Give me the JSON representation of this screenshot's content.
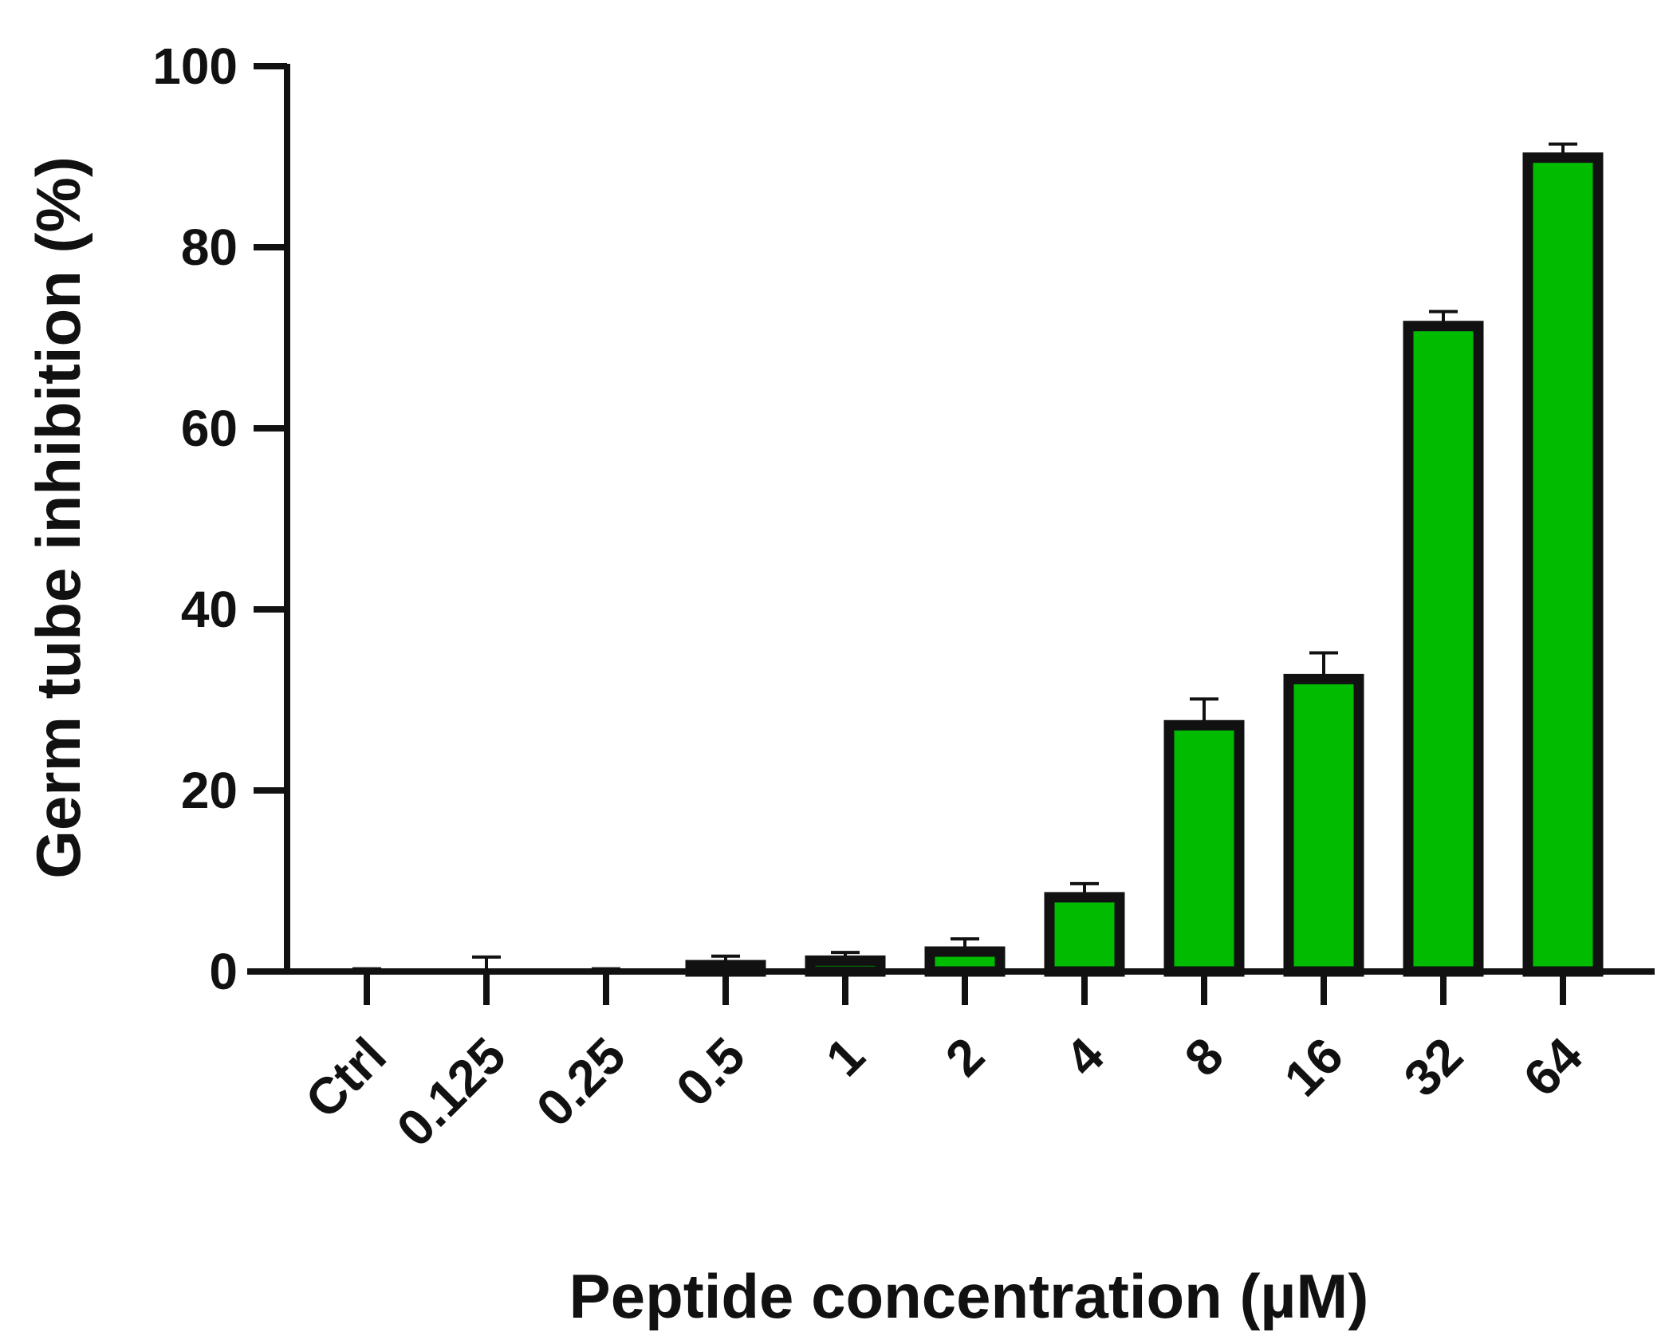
{
  "chart_data": {
    "type": "bar",
    "title": "",
    "xlabel": "Peptide concentration (µM)",
    "ylabel": "Germ tube inhibition (%)",
    "ylim": [
      0,
      100
    ],
    "yticks": [
      0,
      20,
      40,
      60,
      80,
      100
    ],
    "categories": [
      "Ctrl",
      "0.125",
      "0.25",
      "0.5",
      "1",
      "2",
      "4",
      "8",
      "16",
      "32",
      "64"
    ],
    "series": [
      {
        "values": [
          0,
          0,
          0,
          0.7,
          1.2,
          2.2,
          8.2,
          27.2,
          32.3,
          71.3,
          89.9
        ],
        "error": [
          0.3,
          1.6,
          0.3,
          1.0,
          0.9,
          1.4,
          1.5,
          2.9,
          2.9,
          1.6,
          1.5
        ],
        "color": "#00bb00"
      }
    ],
    "grid": false,
    "legend": "none"
  }
}
